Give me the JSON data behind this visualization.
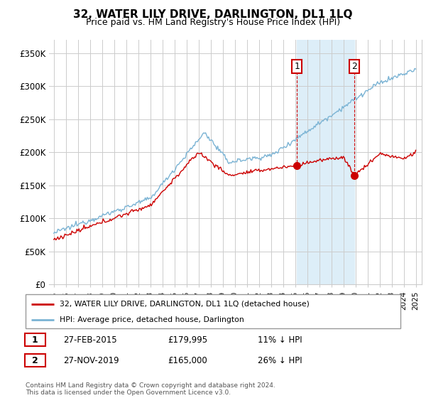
{
  "title": "32, WATER LILY DRIVE, DARLINGTON, DL1 1LQ",
  "subtitle": "Price paid vs. HM Land Registry's House Price Index (HPI)",
  "ylim": [
    0,
    370000
  ],
  "yticks": [
    0,
    50000,
    100000,
    150000,
    200000,
    250000,
    300000,
    350000
  ],
  "ytick_labels": [
    "£0",
    "£50K",
    "£100K",
    "£150K",
    "£200K",
    "£250K",
    "£300K",
    "£350K"
  ],
  "hpi_color": "#7ab3d4",
  "price_color": "#cc0000",
  "highlight_color": "#ddeef8",
  "transaction1": {
    "date": "27-FEB-2015",
    "price": 179995,
    "note": "11% ↓ HPI",
    "label": "1",
    "year": 2015.16
  },
  "transaction2": {
    "date": "27-NOV-2019",
    "price": 165000,
    "note": "26% ↓ HPI",
    "label": "2",
    "year": 2019.91
  },
  "legend_line1": "32, WATER LILY DRIVE, DARLINGTON, DL1 1LQ (detached house)",
  "legend_line2": "HPI: Average price, detached house, Darlington",
  "footnote": "Contains HM Land Registry data © Crown copyright and database right 2024.\nThis data is licensed under the Open Government Licence v3.0.",
  "start_year": 1995,
  "end_year": 2025
}
